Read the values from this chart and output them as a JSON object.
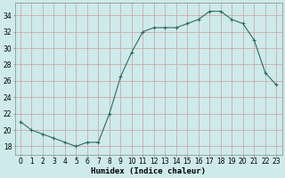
{
  "x": [
    0,
    1,
    2,
    3,
    4,
    5,
    6,
    7,
    8,
    9,
    10,
    11,
    12,
    13,
    14,
    15,
    16,
    17,
    18,
    19,
    20,
    21,
    22,
    23
  ],
  "y": [
    21,
    20,
    19.5,
    19,
    18.5,
    18,
    18.5,
    18.5,
    22,
    26.5,
    29.5,
    32,
    32.5,
    32.5,
    32.5,
    33,
    33.5,
    34.5,
    34.5,
    33.5,
    33,
    31,
    27,
    25.5
  ],
  "line_color": "#2e6b5e",
  "marker": "+",
  "marker_size": 3,
  "marker_linewidth": 0.8,
  "bg_color": "#ceeaea",
  "grid_color_major": "#c8a0a0",
  "grid_color_minor": "#d8b8b8",
  "xlabel": "Humidex (Indice chaleur)",
  "xlim": [
    -0.5,
    23.5
  ],
  "ylim": [
    17,
    35.5
  ],
  "yticks": [
    18,
    20,
    22,
    24,
    26,
    28,
    30,
    32,
    34
  ],
  "xtick_labels": [
    "0",
    "1",
    "2",
    "3",
    "4",
    "5",
    "6",
    "7",
    "8",
    "9",
    "10",
    "11",
    "12",
    "13",
    "14",
    "15",
    "16",
    "17",
    "18",
    "19",
    "20",
    "21",
    "22",
    "23"
  ],
  "tick_fontsize": 5.5,
  "xlabel_fontsize": 6.5,
  "line_width": 0.8
}
